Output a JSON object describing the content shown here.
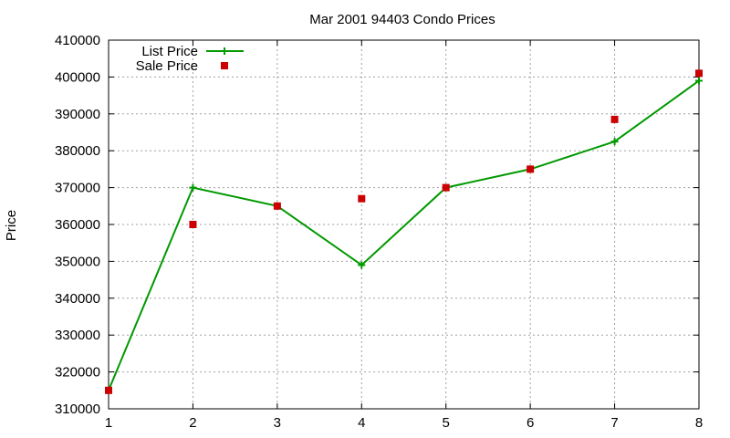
{
  "chart_data": {
    "type": "line",
    "title": "Mar 2001 94403 Condo Prices",
    "xlabel": "",
    "ylabel": "Price",
    "x": [
      1,
      2,
      3,
      4,
      5,
      6,
      7,
      8
    ],
    "xlim": [
      1,
      8
    ],
    "ylim": [
      310000,
      410000
    ],
    "xticks": [
      "1",
      "2",
      "3",
      "4",
      "5",
      "6",
      "7",
      "8"
    ],
    "yticks": [
      "310000",
      "320000",
      "330000",
      "340000",
      "350000",
      "360000",
      "370000",
      "380000",
      "390000",
      "400000",
      "410000"
    ],
    "grid": true,
    "legend_position": "top-left",
    "series": [
      {
        "name": "List Price",
        "style": "line-with-plus",
        "color": "#009900",
        "values": [
          315000,
          370000,
          365000,
          349000,
          370000,
          375000,
          382500,
          399000
        ]
      },
      {
        "name": "Sale Price",
        "style": "square-markers",
        "color": "#cc0000",
        "values": [
          315000,
          360000,
          365000,
          367000,
          370000,
          375000,
          388500,
          401000
        ]
      }
    ]
  }
}
